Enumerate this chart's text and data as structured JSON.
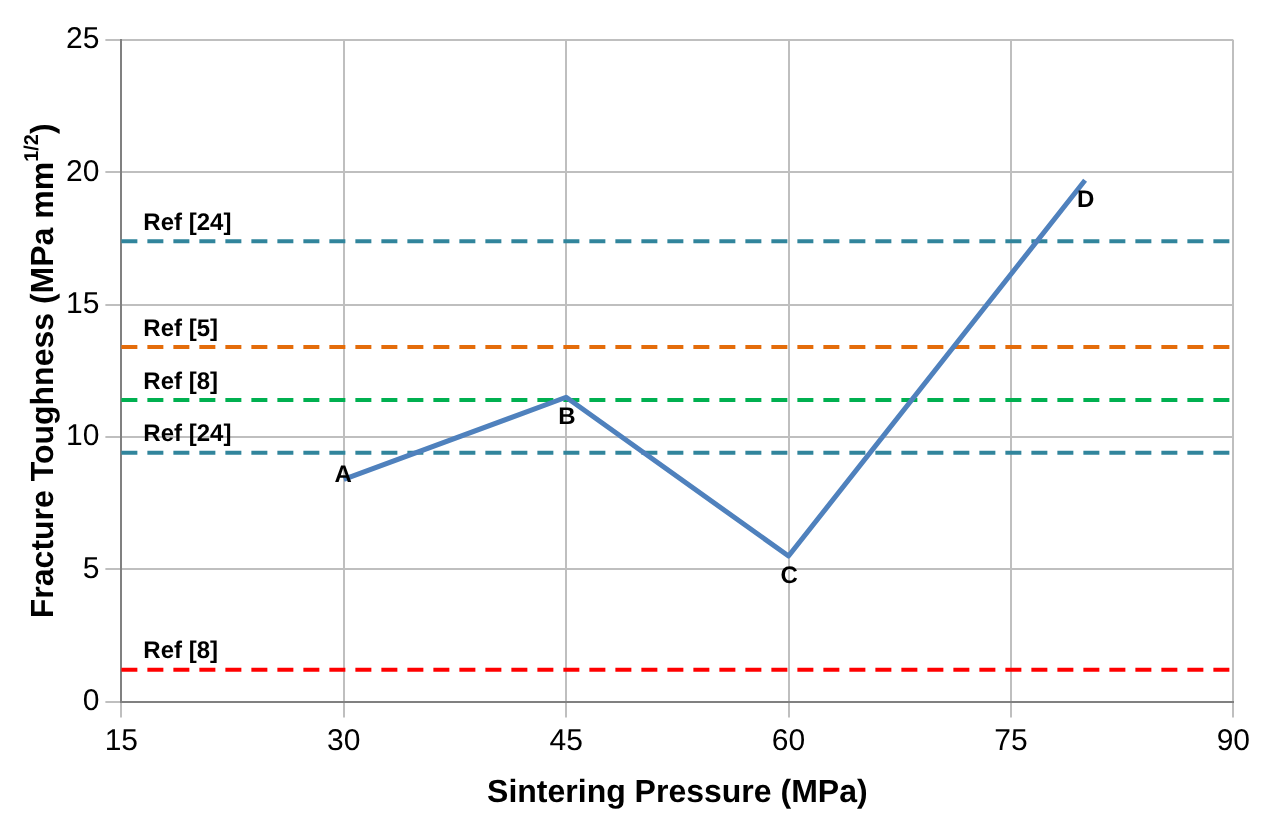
{
  "chart_data": {
    "type": "line",
    "xlabel": "Sintering Pressure (MPa)",
    "ylabel": "Fracture Toughness (MPa mm$^{1/2}$)",
    "x": [
      30,
      45,
      60,
      80
    ],
    "series": [
      {
        "color": "#4f81bd",
        "values": [
          8.4,
          11.5,
          5.5,
          19.7
        ]
      }
    ],
    "xlim": [
      15,
      90
    ],
    "xticks": [
      15,
      30,
      45,
      60,
      75,
      90
    ],
    "ylim": [
      0,
      25
    ],
    "yticks": [
      0,
      5,
      10,
      15,
      20,
      25
    ],
    "grid": true,
    "marker": "none",
    "line_style": "solid",
    "ref_lines": [
      {
        "axis": "y",
        "value": 17.4,
        "label": "Ref [24]",
        "color": "#31859c",
        "line_style": "dashed"
      },
      {
        "axis": "y",
        "value": 13.4,
        "label": "Ref [5]",
        "color": "#e46c0a",
        "line_style": "dashed"
      },
      {
        "axis": "y",
        "value": 11.4,
        "label": "Ref [8]",
        "color": "#00b050",
        "line_style": "dashed"
      },
      {
        "axis": "y",
        "value": 9.4,
        "label": "Ref [24]",
        "color": "#31859c",
        "line_style": "dashed"
      },
      {
        "axis": "y",
        "value": 1.2,
        "label": "Ref [8]",
        "color": "#ff0000",
        "line_style": "dashed"
      }
    ],
    "annotations": [
      {
        "text": "A",
        "x": 30,
        "y": 8.4
      },
      {
        "text": "B",
        "x": 45,
        "y": 11.5
      },
      {
        "text": "C",
        "x": 60,
        "y": 5.5
      },
      {
        "text": "D",
        "x": 80,
        "y": 19.7
      }
    ]
  }
}
